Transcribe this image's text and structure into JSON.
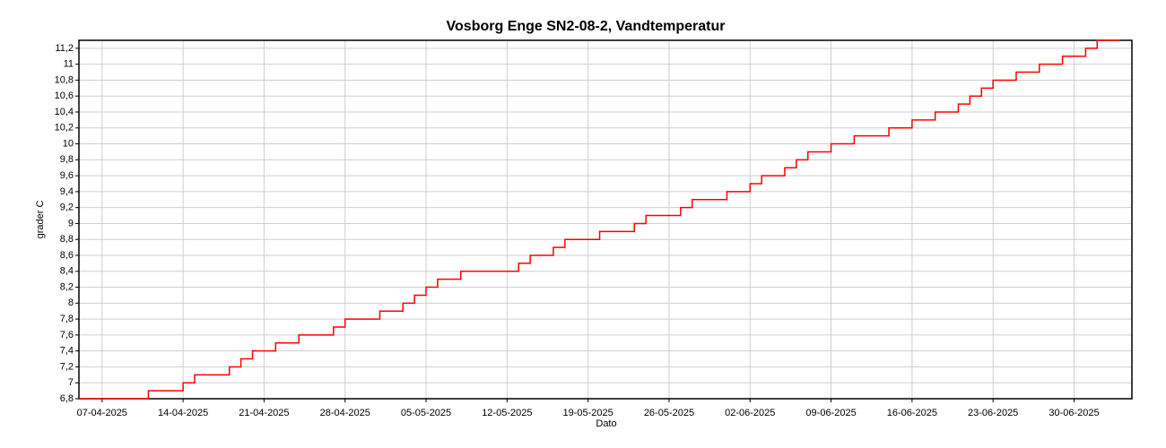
{
  "chart_data": {
    "type": "step",
    "title": "Vosborg Enge SN2-08-2, Vandtemperatur",
    "x_label": "Dato",
    "y_label": "grader C",
    "x": [
      "2025-04-05",
      "2025-04-11",
      "2025-04-14",
      "2025-04-15",
      "2025-04-18",
      "2025-04-19",
      "2025-04-20",
      "2025-04-22",
      "2025-04-24",
      "2025-04-27",
      "2025-04-28",
      "2025-05-01",
      "2025-05-03",
      "2025-05-04",
      "2025-05-05",
      "2025-05-06",
      "2025-05-08",
      "2025-05-13",
      "2025-05-14",
      "2025-05-16",
      "2025-05-17",
      "2025-05-20",
      "2025-05-23",
      "2025-05-24",
      "2025-05-27",
      "2025-05-28",
      "2025-05-31",
      "2025-06-02",
      "2025-06-03",
      "2025-06-05",
      "2025-06-06",
      "2025-06-07",
      "2025-06-09",
      "2025-06-11",
      "2025-06-14",
      "2025-06-16",
      "2025-06-18",
      "2025-06-20",
      "2025-06-21",
      "2025-06-22",
      "2025-06-23",
      "2025-06-25",
      "2025-06-27",
      "2025-06-29",
      "2025-07-01",
      "2025-07-02",
      "2025-07-04"
    ],
    "series": [
      {
        "name": "Vandtemperatur",
        "color": "#ff0000",
        "values": [
          6.8,
          6.9,
          7.0,
          7.1,
          7.2,
          7.3,
          7.4,
          7.5,
          7.6,
          7.7,
          7.8,
          7.9,
          8.0,
          8.1,
          8.2,
          8.3,
          8.4,
          8.5,
          8.6,
          8.7,
          8.8,
          8.9,
          9.0,
          9.1,
          9.2,
          9.3,
          9.4,
          9.5,
          9.6,
          9.7,
          9.8,
          9.9,
          10.0,
          10.1,
          10.2,
          10.3,
          10.4,
          10.5,
          10.6,
          10.7,
          10.8,
          10.9,
          11.0,
          11.1,
          11.2,
          11.3,
          11.3
        ]
      }
    ],
    "xlim": [
      "2025-04-05",
      "2025-07-05"
    ],
    "xticks": [
      {
        "value": "2025-04-07",
        "label": "07-04-2025"
      },
      {
        "value": "2025-04-14",
        "label": "14-04-2025"
      },
      {
        "value": "2025-04-21",
        "label": "21-04-2025"
      },
      {
        "value": "2025-04-28",
        "label": "28-04-2025"
      },
      {
        "value": "2025-05-05",
        "label": "05-05-2025"
      },
      {
        "value": "2025-05-12",
        "label": "12-05-2025"
      },
      {
        "value": "2025-05-19",
        "label": "19-05-2025"
      },
      {
        "value": "2025-05-26",
        "label": "26-05-2025"
      },
      {
        "value": "2025-06-02",
        "label": "02-06-2025"
      },
      {
        "value": "2025-06-09",
        "label": "09-06-2025"
      },
      {
        "value": "2025-06-16",
        "label": "16-06-2025"
      },
      {
        "value": "2025-06-23",
        "label": "23-06-2025"
      },
      {
        "value": "2025-06-30",
        "label": "30-06-2025"
      }
    ],
    "ylim": [
      6.8,
      11.3
    ],
    "yticks": [
      {
        "value": 6.8,
        "label": "6,8"
      },
      7,
      {
        "value": 7.2,
        "label": "7,2"
      },
      {
        "value": 7.4,
        "label": "7,4"
      },
      {
        "value": 7.6,
        "label": "7,6"
      },
      {
        "value": 7.8,
        "label": "7,8"
      },
      8,
      {
        "value": 8.2,
        "label": "8,2"
      },
      {
        "value": 8.4,
        "label": "8,4"
      },
      {
        "value": 8.6,
        "label": "8,6"
      },
      {
        "value": 8.8,
        "label": "8,8"
      },
      9,
      {
        "value": 9.2,
        "label": "9,2"
      },
      {
        "value": 9.4,
        "label": "9,4"
      },
      {
        "value": 9.6,
        "label": "9,6"
      },
      {
        "value": 9.8,
        "label": "9,8"
      },
      10,
      {
        "value": 10.2,
        "label": "10,2"
      },
      {
        "value": 10.4,
        "label": "10,4"
      },
      {
        "value": 10.6,
        "label": "10,6"
      },
      {
        "value": 10.8,
        "label": "10,8"
      },
      11,
      {
        "value": 11.2,
        "label": "11,2"
      }
    ],
    "grid": true
  }
}
